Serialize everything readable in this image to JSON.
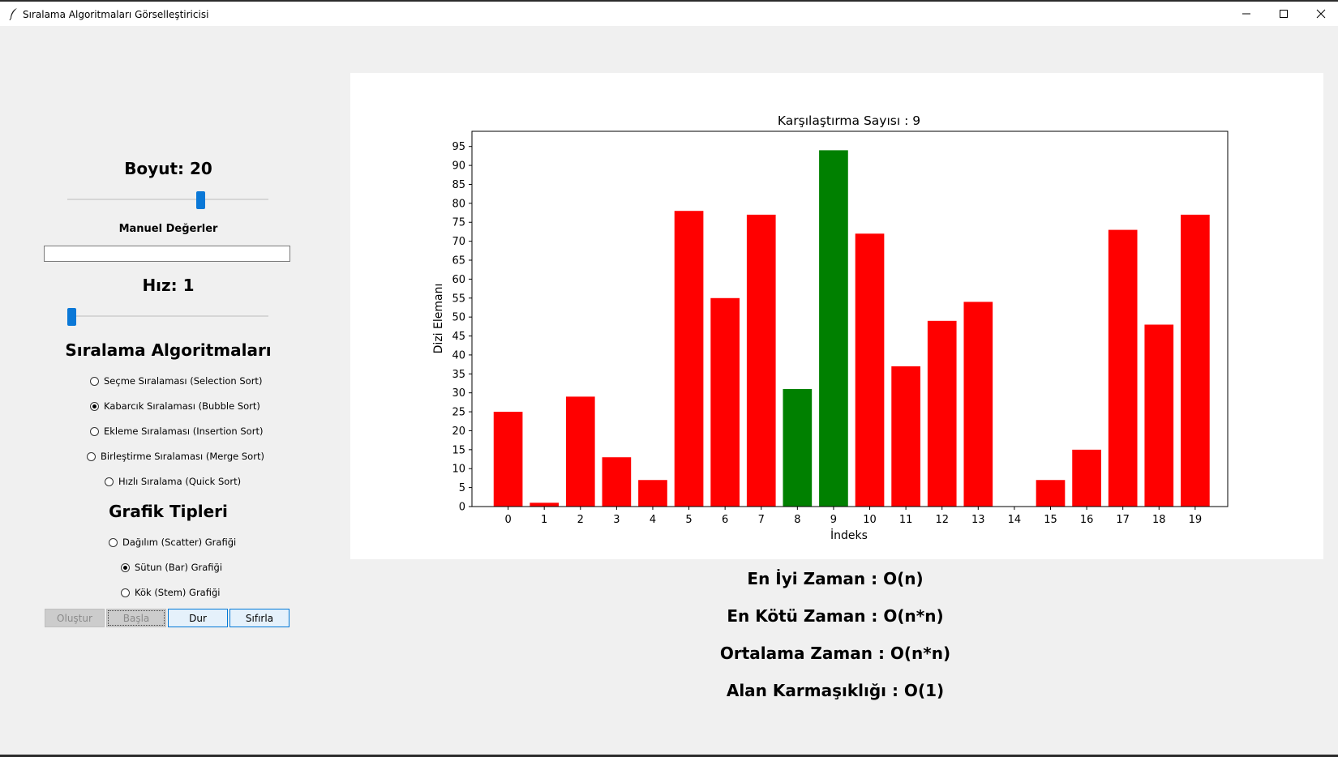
{
  "window": {
    "title": "Sıralama Algoritmaları Görselleştiricisi"
  },
  "controls": {
    "size_label": "Boyut: 20",
    "size_value": 20,
    "manual_label": "Manuel Değerler",
    "manual_value": "",
    "speed_label": "Hız: 1",
    "speed_value": 1
  },
  "algorithms": {
    "title": "Sıralama Algoritmaları",
    "options": [
      {
        "label": "Seçme Sıralaması (Selection Sort)",
        "selected": false
      },
      {
        "label": "Kabarcık Sıralaması (Bubble Sort)",
        "selected": true
      },
      {
        "label": "Ekleme Sıralaması (Insertion Sort)",
        "selected": false
      },
      {
        "label": "Birleştirme Sıralaması (Merge Sort)",
        "selected": false
      },
      {
        "label": "Hızlı Sıralama (Quick Sort)",
        "selected": false
      }
    ]
  },
  "graph_types": {
    "title": "Grafik Tipleri",
    "options": [
      {
        "label": "Dağılım (Scatter) Grafiği",
        "selected": false
      },
      {
        "label": "Sütun (Bar) Grafiği",
        "selected": true
      },
      {
        "label": "Kök (Stem) Grafiği",
        "selected": false
      }
    ]
  },
  "buttons": {
    "create": "Oluştur",
    "start": "Başla",
    "stop": "Dur",
    "reset": "Sıfırla"
  },
  "complexity": {
    "best": "En İyi Zaman : O(n)",
    "worst": "En Kötü Zaman : O(n*n)",
    "average": "Ortalama Zaman : O(n*n)",
    "space": "Alan Karmaşıklığı : O(1)"
  },
  "colors": {
    "bar_default": "#ff0000",
    "bar_compare": "#008000",
    "slider_thumb": "#0a78d7"
  },
  "chart_data": {
    "type": "bar",
    "title": "Karşılaştırma Sayısı : 9",
    "xlabel": "İndeks",
    "ylabel": "Dizi Elemanı",
    "categories": [
      "0",
      "1",
      "2",
      "3",
      "4",
      "5",
      "6",
      "7",
      "8",
      "9",
      "10",
      "11",
      "12",
      "13",
      "14",
      "15",
      "16",
      "17",
      "18",
      "19"
    ],
    "values": [
      25,
      1,
      29,
      13,
      7,
      78,
      55,
      77,
      31,
      94,
      72,
      37,
      49,
      54,
      0,
      7,
      15,
      73,
      48,
      77
    ],
    "highlighted": [
      8,
      9
    ],
    "ylim": [
      0,
      99
    ],
    "yticks": [
      0,
      5,
      10,
      15,
      20,
      25,
      30,
      35,
      40,
      45,
      50,
      55,
      60,
      65,
      70,
      75,
      80,
      85,
      90,
      95
    ],
    "grid": false
  }
}
